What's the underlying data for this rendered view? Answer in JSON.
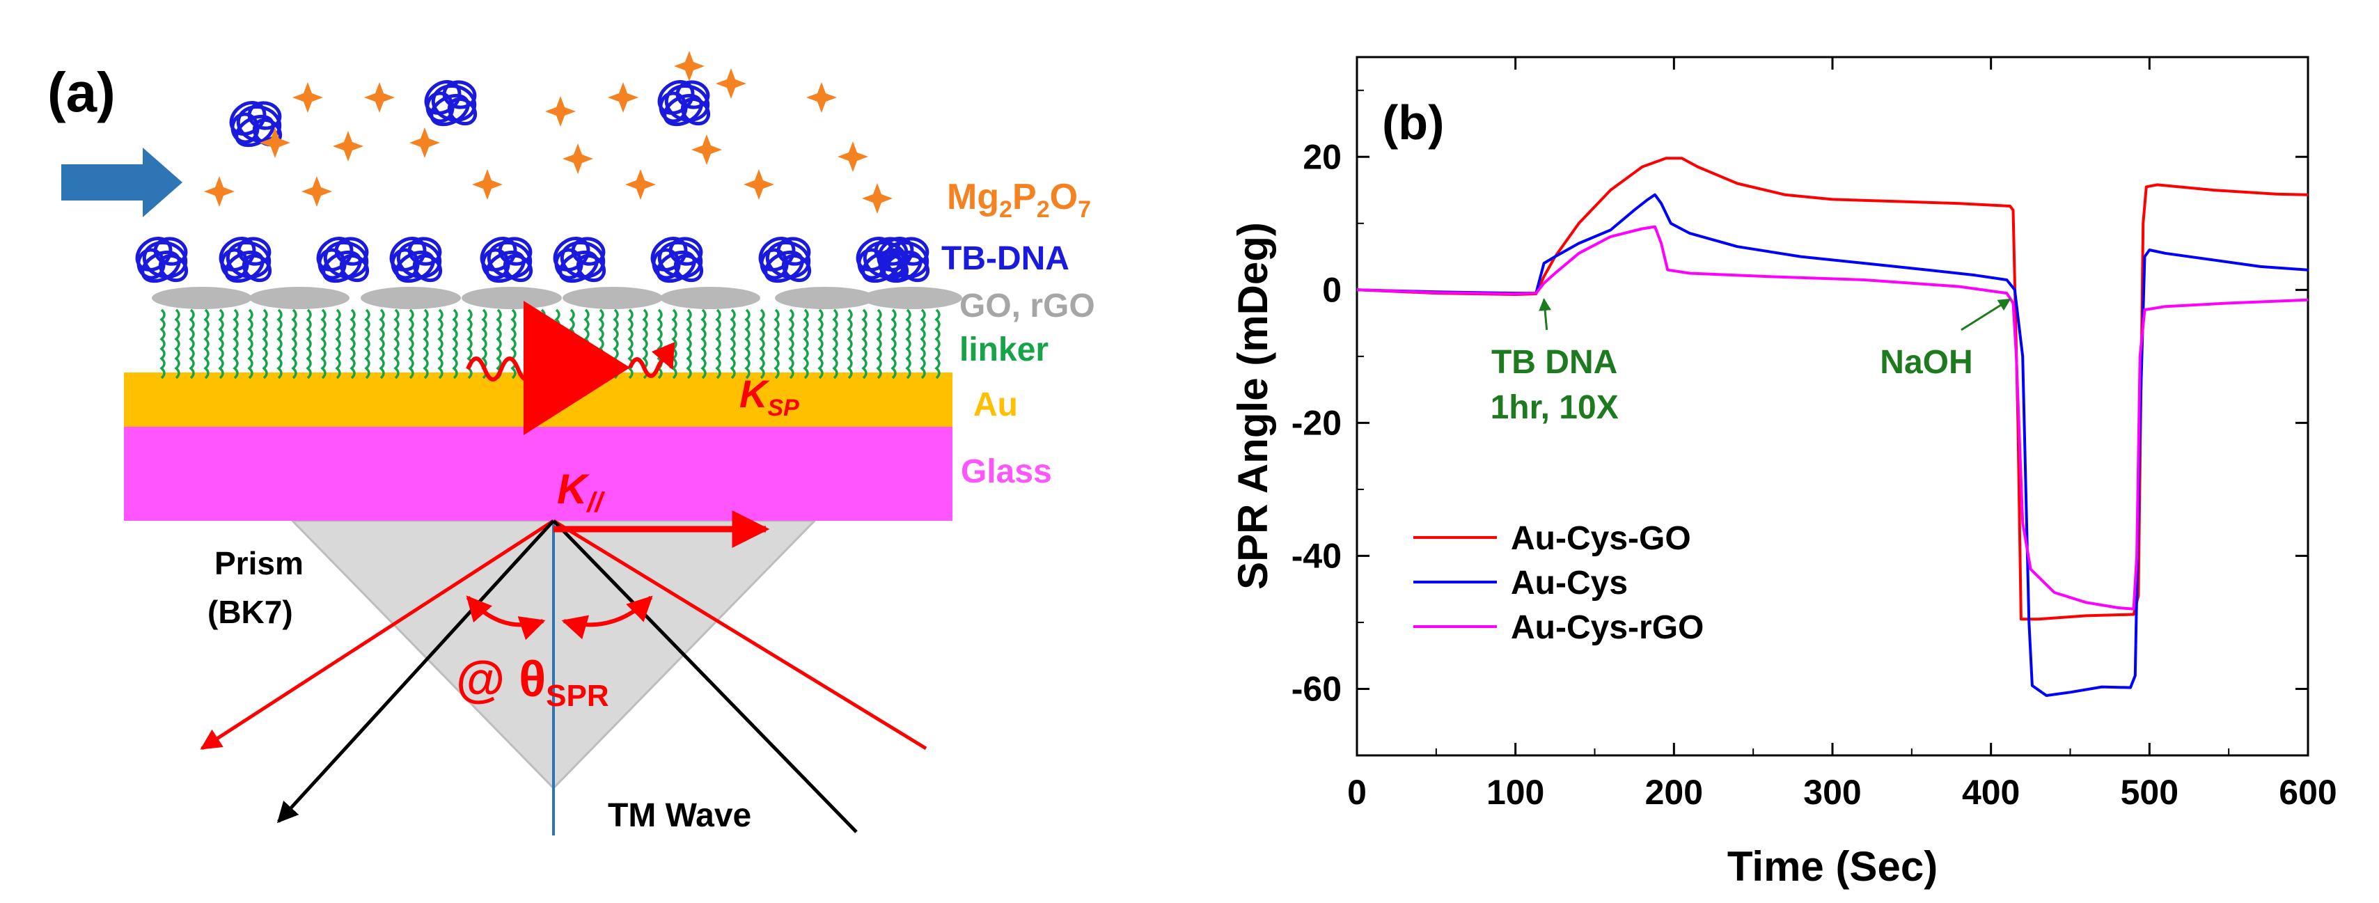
{
  "panel_a": {
    "label": "(a)",
    "labels": {
      "mg": "Mg",
      "mg_sub1": "2",
      "mg_p": "P",
      "mg_sub2": "2",
      "mg_o": "O",
      "mg_sub3": "7",
      "tb_dna": "TB-DNA",
      "go": "GO, rGO",
      "linker": "linker",
      "au": "Au",
      "glass": "Glass",
      "ksp": "K",
      "ksp_sub": "SP",
      "kpar": "K",
      "kpar_sub": "//",
      "prism1": "Prism",
      "prism2": "(BK7)",
      "theta_prefix": "@ θ",
      "theta_sub": "SPR",
      "tm_wave": "TM Wave"
    },
    "colors": {
      "arrow": "#2e75b6",
      "star": "#f58220",
      "dna": "#1a1adf",
      "go": "#b8b8b8",
      "linker": "#16a34a",
      "au": "#ffc000",
      "glass": "#ff55ff",
      "prism": "#d9d9d9",
      "ray": "#ff0000",
      "black_ray": "#000000",
      "normal": "#2e75b6"
    }
  },
  "chart_data": {
    "type": "line",
    "panel_label": "(b)",
    "xlabel": "Time (Sec)",
    "ylabel": "SPR Angle (mDeg)",
    "xlim": [
      0,
      600
    ],
    "ylim": [
      -70,
      35
    ],
    "xticks": [
      0,
      100,
      200,
      300,
      400,
      500,
      600
    ],
    "yticks": [
      -60,
      -40,
      -20,
      0,
      20
    ],
    "legend_position": "bottom-left",
    "series": [
      {
        "name": "Au-Cys-GO",
        "color": "#ff0000",
        "points": [
          [
            0,
            0
          ],
          [
            50,
            -0.5
          ],
          [
            100,
            -0.7
          ],
          [
            113,
            -0.6
          ],
          [
            118,
            2
          ],
          [
            125,
            5
          ],
          [
            140,
            10
          ],
          [
            160,
            15
          ],
          [
            180,
            18.5
          ],
          [
            195,
            19.8
          ],
          [
            205,
            19.8
          ],
          [
            215,
            18.5
          ],
          [
            240,
            16
          ],
          [
            270,
            14.3
          ],
          [
            300,
            13.6
          ],
          [
            340,
            13.3
          ],
          [
            380,
            13
          ],
          [
            412,
            12.6
          ],
          [
            414,
            12
          ],
          [
            417,
            -20
          ],
          [
            419,
            -49.5
          ],
          [
            430,
            -49.5
          ],
          [
            460,
            -49
          ],
          [
            490,
            -48.8
          ],
          [
            493,
            -46
          ],
          [
            496,
            10
          ],
          [
            498,
            15.5
          ],
          [
            505,
            15.8
          ],
          [
            540,
            15
          ],
          [
            580,
            14.4
          ],
          [
            600,
            14.3
          ]
        ]
      },
      {
        "name": "Au-Cys",
        "color": "#0000ff",
        "points": [
          [
            0,
            0
          ],
          [
            50,
            -0.3
          ],
          [
            100,
            -0.5
          ],
          [
            113,
            -0.5
          ],
          [
            118,
            4
          ],
          [
            125,
            5
          ],
          [
            140,
            7
          ],
          [
            160,
            9
          ],
          [
            175,
            12
          ],
          [
            183,
            13.5
          ],
          [
            188,
            14.3
          ],
          [
            192,
            13
          ],
          [
            198,
            10
          ],
          [
            210,
            8.5
          ],
          [
            240,
            6.5
          ],
          [
            280,
            5
          ],
          [
            320,
            4
          ],
          [
            360,
            3
          ],
          [
            390,
            2.2
          ],
          [
            410,
            1.5
          ],
          [
            415,
            0
          ],
          [
            420,
            -10
          ],
          [
            424,
            -50
          ],
          [
            426,
            -59.5
          ],
          [
            435,
            -61
          ],
          [
            450,
            -60.5
          ],
          [
            470,
            -59.7
          ],
          [
            488,
            -59.8
          ],
          [
            491,
            -58
          ],
          [
            494,
            -20
          ],
          [
            497,
            5
          ],
          [
            500,
            6
          ],
          [
            510,
            5.5
          ],
          [
            540,
            4.5
          ],
          [
            570,
            3.5
          ],
          [
            600,
            3
          ]
        ]
      },
      {
        "name": "Au-Cys-rGO",
        "color": "#ff00ff",
        "points": [
          [
            0,
            0
          ],
          [
            50,
            -0.4
          ],
          [
            100,
            -0.6
          ],
          [
            113,
            -0.5
          ],
          [
            118,
            1
          ],
          [
            125,
            2.5
          ],
          [
            140,
            5.5
          ],
          [
            160,
            8
          ],
          [
            180,
            9.2
          ],
          [
            188,
            9.5
          ],
          [
            192,
            7
          ],
          [
            196,
            3
          ],
          [
            210,
            2.5
          ],
          [
            260,
            2
          ],
          [
            320,
            1.5
          ],
          [
            380,
            0.5
          ],
          [
            410,
            -0.5
          ],
          [
            414,
            -2
          ],
          [
            416,
            -10
          ],
          [
            420,
            -35
          ],
          [
            425,
            -42
          ],
          [
            440,
            -45.5
          ],
          [
            460,
            -47
          ],
          [
            480,
            -47.8
          ],
          [
            490,
            -48
          ],
          [
            492,
            -40
          ],
          [
            494,
            -10
          ],
          [
            497,
            -3
          ],
          [
            510,
            -2.5
          ],
          [
            550,
            -2
          ],
          [
            600,
            -1.5
          ]
        ]
      }
    ],
    "annotations": [
      {
        "text_lines": [
          "TB DNA",
          "1hr, 10X"
        ],
        "x": 118,
        "y": -1,
        "color": "#1e7a1e"
      },
      {
        "text_lines": [
          "NaOH"
        ],
        "x": 412,
        "y": -1,
        "color": "#1e7a1e"
      }
    ]
  }
}
